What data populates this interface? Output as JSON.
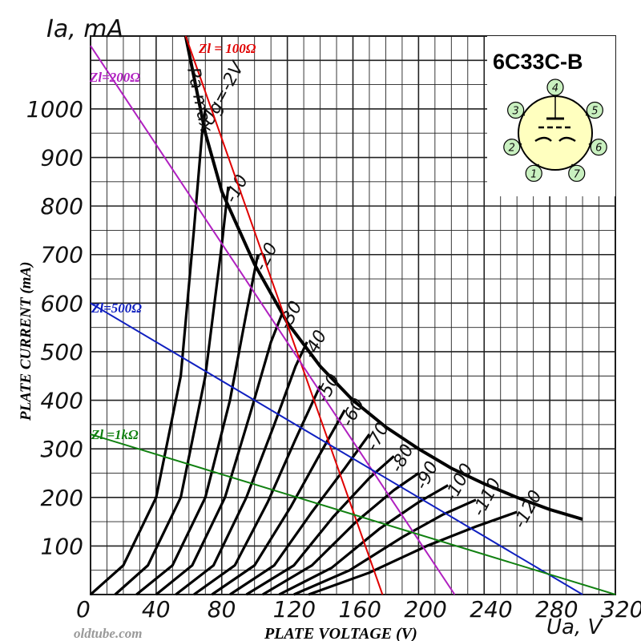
{
  "chart_data": {
    "type": "line",
    "title": "6C33C-B",
    "xlabel": "PLATE VOLTAGE (V)",
    "ylabel": "PLATE CURRENT (mA)",
    "x_unit_label": "Ua, V",
    "y_unit_label": "Ia, mA",
    "xlim": [
      0,
      320
    ],
    "ylim": [
      0,
      1150
    ],
    "x_ticks": [
      0,
      40,
      80,
      120,
      160,
      200,
      240,
      280,
      320
    ],
    "y_ticks": [
      100,
      200,
      300,
      400,
      500,
      600,
      700,
      800,
      900,
      1000
    ],
    "grid": true,
    "watermark": "oldtube.com",
    "pa_max_label": "Pa max",
    "pa_max_curve": [
      [
        58,
        1150
      ],
      [
        70,
        950
      ],
      [
        80,
        830
      ],
      [
        100,
        680
      ],
      [
        120,
        560
      ],
      [
        140,
        470
      ],
      [
        160,
        400
      ],
      [
        180,
        345
      ],
      [
        200,
        300
      ],
      [
        220,
        260
      ],
      [
        240,
        228
      ],
      [
        260,
        200
      ],
      [
        280,
        175
      ],
      [
        300,
        155
      ]
    ],
    "grid_curves": [
      {
        "label": "Ug=-2V",
        "points": [
          [
            0,
            0
          ],
          [
            20,
            60
          ],
          [
            40,
            200
          ],
          [
            55,
            450
          ],
          [
            63,
            750
          ],
          [
            68,
            950
          ],
          [
            70,
            1000
          ]
        ]
      },
      {
        "label": "-10",
        "points": [
          [
            15,
            0
          ],
          [
            35,
            60
          ],
          [
            55,
            200
          ],
          [
            70,
            450
          ],
          [
            80,
            720
          ],
          [
            84,
            840
          ]
        ]
      },
      {
        "label": "-20",
        "points": [
          [
            28,
            0
          ],
          [
            50,
            60
          ],
          [
            70,
            200
          ],
          [
            85,
            400
          ],
          [
            95,
            580
          ],
          [
            102,
            700
          ]
        ]
      },
      {
        "label": "-30",
        "points": [
          [
            40,
            0
          ],
          [
            62,
            60
          ],
          [
            82,
            200
          ],
          [
            98,
            380
          ],
          [
            110,
            520
          ],
          [
            117,
            580
          ]
        ]
      },
      {
        "label": "-40",
        "points": [
          [
            52,
            0
          ],
          [
            75,
            60
          ],
          [
            95,
            200
          ],
          [
            112,
            350
          ],
          [
            125,
            470
          ],
          [
            132,
            520
          ]
        ]
      },
      {
        "label": "-50",
        "points": [
          [
            63,
            0
          ],
          [
            88,
            60
          ],
          [
            108,
            190
          ],
          [
            125,
            320
          ],
          [
            140,
            430
          ]
        ]
      },
      {
        "label": "-60",
        "points": [
          [
            74,
            0
          ],
          [
            100,
            60
          ],
          [
            122,
            180
          ],
          [
            140,
            290
          ],
          [
            155,
            380
          ]
        ]
      },
      {
        "label": "-70",
        "points": [
          [
            85,
            0
          ],
          [
            112,
            60
          ],
          [
            135,
            170
          ],
          [
            155,
            260
          ],
          [
            170,
            330
          ]
        ]
      },
      {
        "label": "-80",
        "points": [
          [
            95,
            0
          ],
          [
            124,
            60
          ],
          [
            148,
            160
          ],
          [
            170,
            240
          ],
          [
            185,
            285
          ]
        ]
      },
      {
        "label": "-90",
        "points": [
          [
            105,
            0
          ],
          [
            135,
            60
          ],
          [
            162,
            150
          ],
          [
            185,
            215
          ],
          [
            200,
            250
          ]
        ]
      },
      {
        "label": "-100",
        "points": [
          [
            115,
            0
          ],
          [
            147,
            55
          ],
          [
            176,
            135
          ],
          [
            200,
            190
          ],
          [
            218,
            225
          ]
        ]
      },
      {
        "label": "-110",
        "points": [
          [
            124,
            0
          ],
          [
            158,
            50
          ],
          [
            190,
            118
          ],
          [
            215,
            165
          ],
          [
            235,
            195
          ]
        ]
      },
      {
        "label": "-120",
        "points": [
          [
            133,
            0
          ],
          [
            170,
            45
          ],
          [
            205,
            100
          ],
          [
            235,
            140
          ],
          [
            260,
            170
          ]
        ]
      }
    ],
    "load_lines": [
      {
        "name": "Zl = 100Ω",
        "color": "#e00000",
        "points": [
          [
            58,
            1150
          ],
          [
            178,
            0
          ]
        ]
      },
      {
        "name": "Zl=200Ω",
        "color": "#b020c0",
        "points": [
          [
            0,
            1130
          ],
          [
            222,
            0
          ]
        ]
      },
      {
        "name": "Zl=500Ω",
        "color": "#1020c0",
        "points": [
          [
            0,
            600
          ],
          [
            300,
            0
          ]
        ]
      },
      {
        "name": "Zl =1kΩ",
        "color": "#108010",
        "points": [
          [
            0,
            330
          ],
          [
            320,
            0
          ]
        ]
      }
    ],
    "pinout": {
      "pins": [
        "4",
        "5",
        "6",
        "7",
        "1",
        "2",
        "3"
      ],
      "pin_fill": "#c9f0c0",
      "body_fill": "#ffffbf"
    }
  }
}
